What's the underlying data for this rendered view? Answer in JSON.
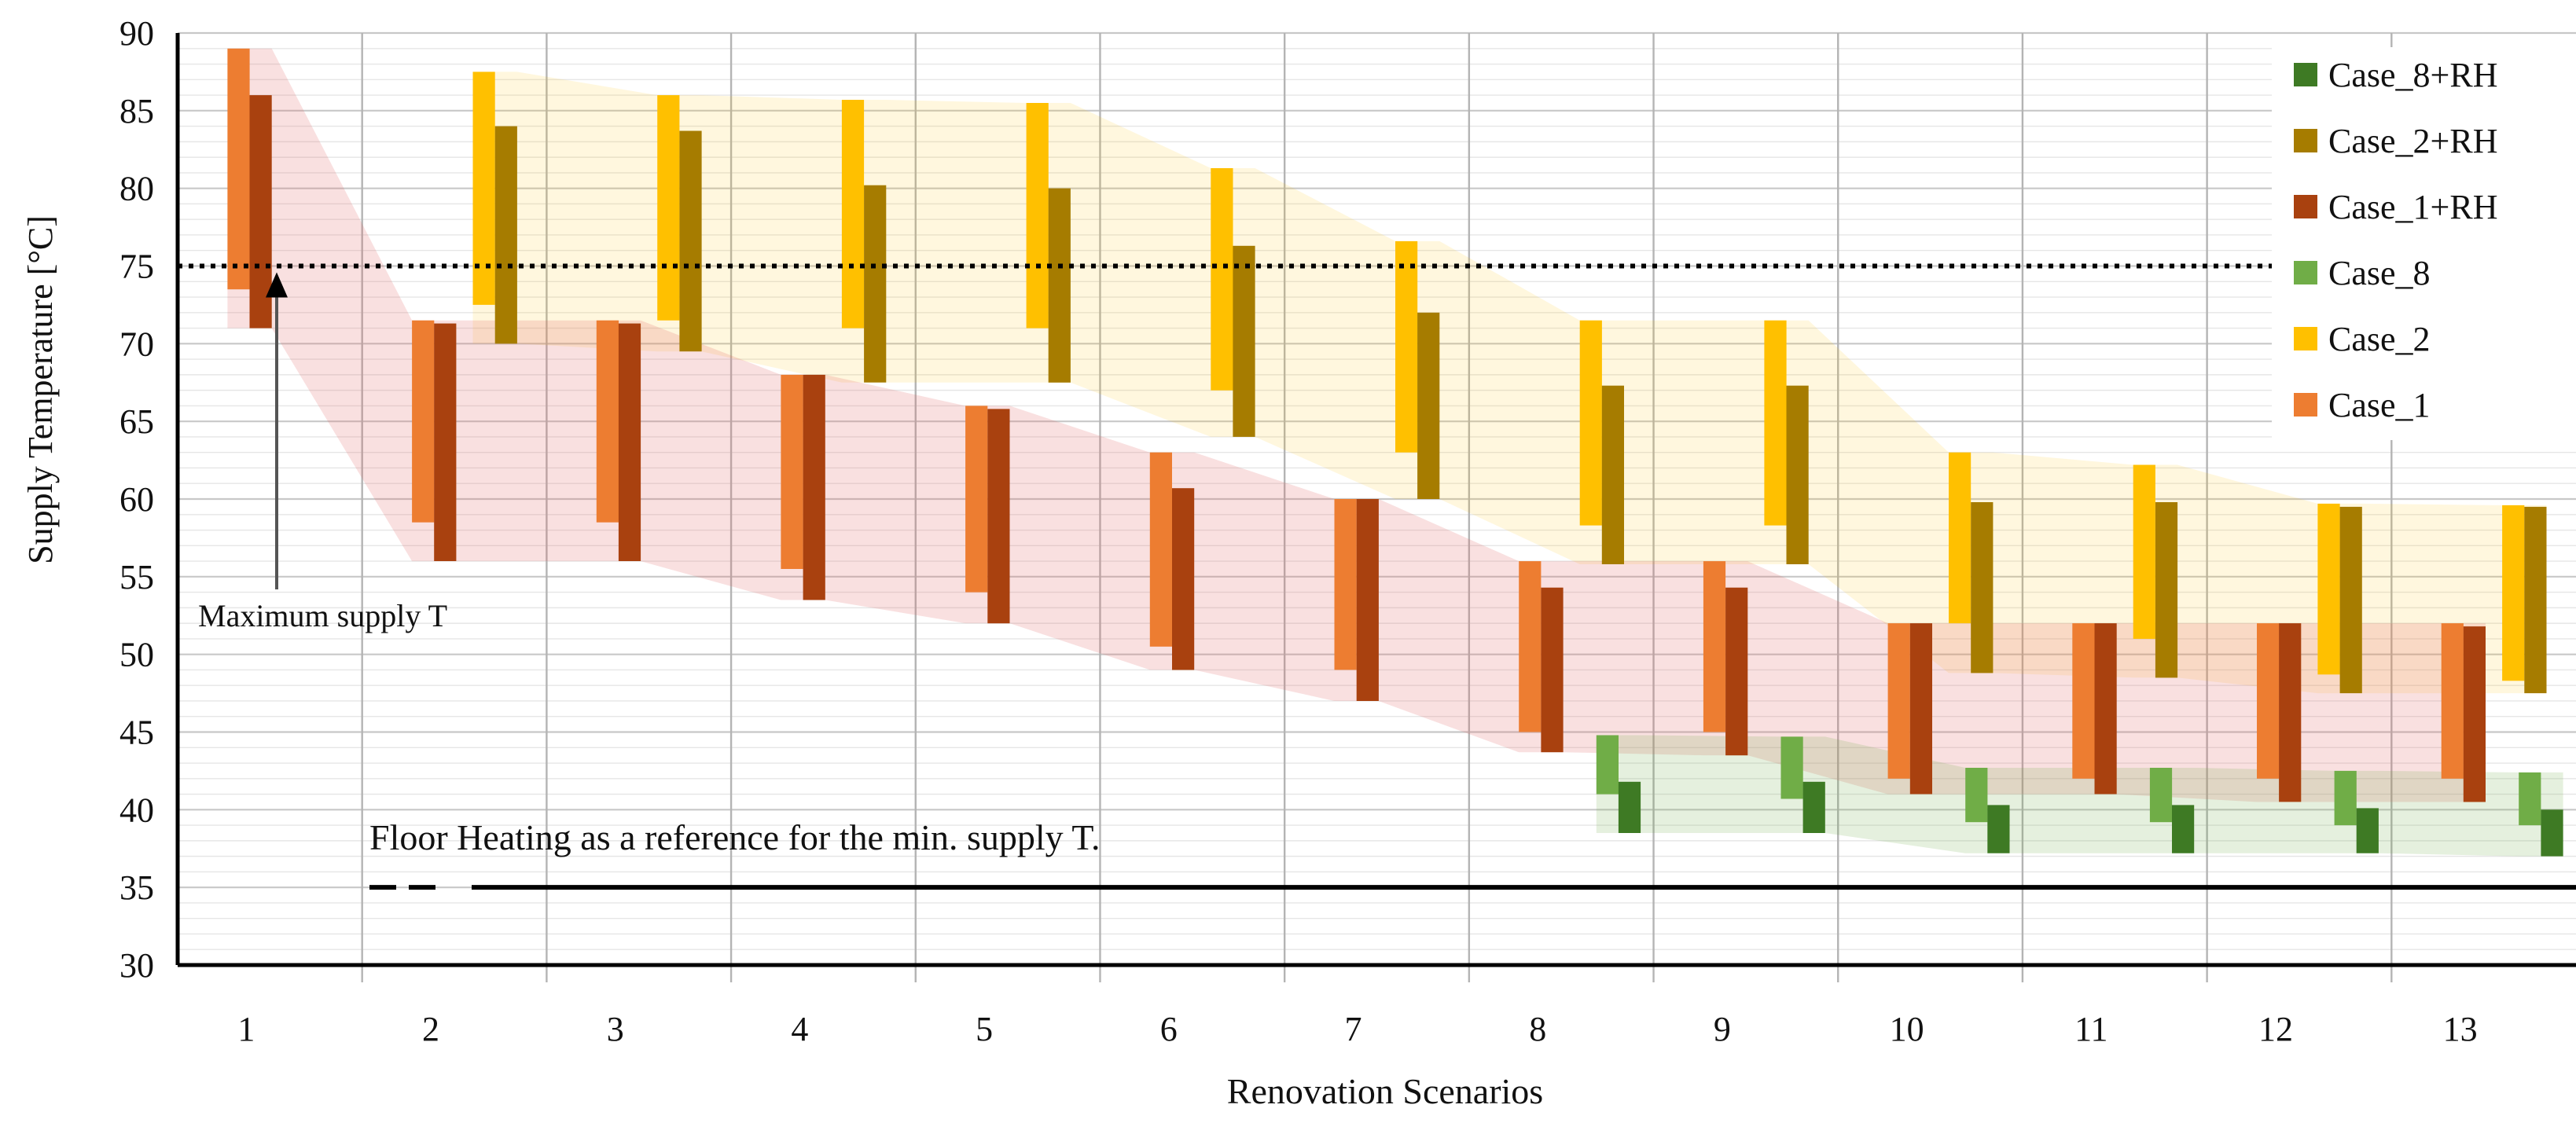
{
  "chart_data": {
    "type": "bar",
    "subtype": "floating-range",
    "xlabel": "Renovation Scenarios",
    "ylabel": "Supply Temperature [°C]",
    "ylim": [
      30,
      90
    ],
    "yticks": [
      30,
      35,
      40,
      45,
      50,
      55,
      60,
      65,
      70,
      75,
      80,
      85,
      90
    ],
    "categories": [
      "1",
      "2",
      "3",
      "4",
      "5",
      "6",
      "7",
      "8",
      "9",
      "10",
      "11",
      "12",
      "13"
    ],
    "grid": "on",
    "legend_position": "top-right",
    "legend": [
      "Case_8+RH",
      "Case_2+RH",
      "Case_1+RH",
      "Case_8",
      "Case_2",
      "Case_1"
    ],
    "series": [
      {
        "name": "Case_1",
        "color": "#ED7D31",
        "ranges": [
          [
            73.5,
            89
          ],
          [
            58.5,
            71.5
          ],
          [
            58.5,
            71.5
          ],
          [
            55.5,
            68
          ],
          [
            54,
            66
          ],
          [
            50.5,
            63
          ],
          [
            49,
            60
          ],
          [
            45,
            56
          ],
          [
            45,
            56
          ],
          [
            42,
            52
          ],
          [
            42,
            52
          ],
          [
            42,
            52
          ],
          [
            42,
            52
          ]
        ]
      },
      {
        "name": "Case_1+RH",
        "color": "#A9410F",
        "ranges": [
          [
            71,
            86
          ],
          [
            56,
            71.3
          ],
          [
            56,
            71.3
          ],
          [
            53.5,
            68
          ],
          [
            52,
            65.8
          ],
          [
            49,
            60.7
          ],
          [
            47,
            60
          ],
          [
            43.7,
            54.3
          ],
          [
            43.5,
            54.3
          ],
          [
            41,
            52
          ],
          [
            41,
            52
          ],
          [
            40.5,
            52
          ],
          [
            40.5,
            51.8
          ]
        ]
      },
      {
        "name": "Case_2",
        "color": "#FFC000",
        "ranges": [
          [
            null,
            null
          ],
          [
            72.5,
            87.5
          ],
          [
            71.5,
            86
          ],
          [
            71,
            85.7
          ],
          [
            71,
            85.5
          ],
          [
            67,
            81.3
          ],
          [
            63,
            76.6
          ],
          [
            58.3,
            71.5
          ],
          [
            58.3,
            71.5
          ],
          [
            52,
            63
          ],
          [
            51,
            62.2
          ],
          [
            48.7,
            59.7
          ],
          [
            48.3,
            59.6
          ]
        ]
      },
      {
        "name": "Case_2+RH",
        "color": "#A67C00",
        "ranges": [
          [
            null,
            null
          ],
          [
            70,
            84
          ],
          [
            69.5,
            83.7
          ],
          [
            67.5,
            80.2
          ],
          [
            67.5,
            80
          ],
          [
            64,
            76.3
          ],
          [
            60,
            72
          ],
          [
            55.8,
            67.3
          ],
          [
            55.8,
            67.3
          ],
          [
            48.8,
            59.8
          ],
          [
            48.5,
            59.8
          ],
          [
            47.5,
            59.5
          ],
          [
            47.5,
            59.5
          ]
        ]
      },
      {
        "name": "Case_8",
        "color": "#70AD47",
        "ranges": [
          [
            null,
            null
          ],
          [
            null,
            null
          ],
          [
            null,
            null
          ],
          [
            null,
            null
          ],
          [
            null,
            null
          ],
          [
            null,
            null
          ],
          [
            null,
            null
          ],
          [
            41,
            44.8
          ],
          [
            40.7,
            44.7
          ],
          [
            39.2,
            42.7
          ],
          [
            39.2,
            42.7
          ],
          [
            39,
            42.5
          ],
          [
            39,
            42.4
          ]
        ]
      },
      {
        "name": "Case_8+RH",
        "color": "#3E7A24",
        "ranges": [
          [
            null,
            null
          ],
          [
            null,
            null
          ],
          [
            null,
            null
          ],
          [
            null,
            null
          ],
          [
            null,
            null
          ],
          [
            null,
            null
          ],
          [
            null,
            null
          ],
          [
            38.5,
            41.8
          ],
          [
            38.5,
            41.8
          ],
          [
            37.2,
            40.3
          ],
          [
            37.2,
            40.3
          ],
          [
            37.2,
            40.1
          ],
          [
            37,
            40
          ]
        ]
      }
    ],
    "reference_lines": [
      {
        "value": 75,
        "style": "dotted",
        "color": "#000000"
      },
      {
        "value": 35,
        "style": "solid",
        "color": "#000000"
      }
    ],
    "annotations": [
      {
        "text": "Maximum supply T",
        "points_to": 75
      },
      {
        "text": "Floor Heating as a reference for the min. supply T.",
        "refers_to": 35
      }
    ],
    "bands": [
      {
        "color": "#FFC000",
        "opacity": 0.13
      },
      {
        "color": "#E06666",
        "opacity": 0.2
      },
      {
        "color": "#70AD47",
        "opacity": 0.18
      }
    ]
  }
}
